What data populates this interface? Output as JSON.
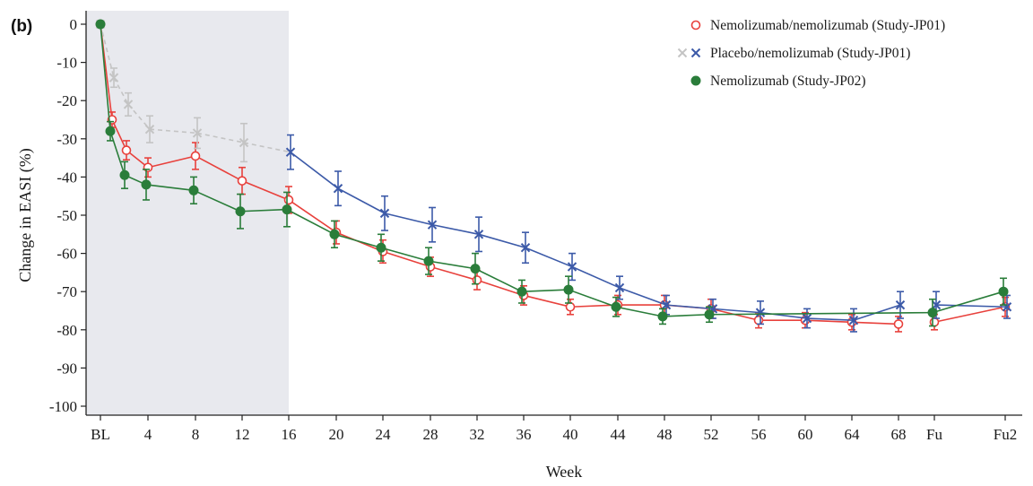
{
  "chart_data": {
    "type": "line",
    "panel_label": "(b)",
    "xlabel": "Week",
    "ylabel": "Change in EASI (%)",
    "ylim": [
      -100,
      0
    ],
    "yticks": [
      0,
      -10,
      -20,
      -30,
      -40,
      -50,
      -60,
      -70,
      -80,
      -90,
      -100
    ],
    "xticks": [
      "BL",
      "4",
      "8",
      "12",
      "16",
      "20",
      "24",
      "28",
      "32",
      "36",
      "40",
      "44",
      "48",
      "52",
      "56",
      "60",
      "64",
      "68",
      "Fu",
      "Fu2"
    ],
    "shaded_period": [
      "BL",
      "16"
    ],
    "legend": {
      "position": "top-right"
    },
    "series": [
      {
        "name": "Nemolizumab/nemolizumab (Study-JP01)",
        "color": "#e8413c",
        "marker": "open-circle",
        "line": "solid",
        "points": [
          {
            "x": "BL",
            "y": 0,
            "err": 0
          },
          {
            "x": "1",
            "y": -25,
            "err": 2
          },
          {
            "x": "2",
            "y": -33,
            "err": 2.5
          },
          {
            "x": "4",
            "y": -37.5,
            "err": 2.5
          },
          {
            "x": "8",
            "y": -34.5,
            "err": 3.5
          },
          {
            "x": "12",
            "y": -41,
            "err": 3.5
          },
          {
            "x": "16",
            "y": -46,
            "err": 3.5
          },
          {
            "x": "20",
            "y": -54.5,
            "err": 3
          },
          {
            "x": "24",
            "y": -59.5,
            "err": 3
          },
          {
            "x": "28",
            "y": -63.5,
            "err": 2.5
          },
          {
            "x": "32",
            "y": -67,
            "err": 2.5
          },
          {
            "x": "36",
            "y": -71,
            "err": 2.5
          },
          {
            "x": "40",
            "y": -74,
            "err": 2
          },
          {
            "x": "44",
            "y": -73.5,
            "err": 2.5
          },
          {
            "x": "48",
            "y": -73.5,
            "err": 2.5
          },
          {
            "x": "52",
            "y": -74.5,
            "err": 2.5
          },
          {
            "x": "56",
            "y": -77.5,
            "err": 2
          },
          {
            "x": "60",
            "y": -77.5,
            "err": 2
          },
          {
            "x": "64",
            "y": -78,
            "err": 2
          },
          {
            "x": "68",
            "y": -78.5,
            "err": 2
          },
          {
            "x": "Fu",
            "y": -78,
            "err": 2
          },
          {
            "x": "Fu2",
            "y": -74,
            "err": 2.5
          }
        ]
      },
      {
        "name": "Placebo/nemolizumab (Study-JP01)",
        "color": "#3c5aa8",
        "color_placebo_period": "#c4c4c4",
        "marker": "x",
        "line": "solid",
        "line_placebo_period": "dashed",
        "points": [
          {
            "x": "BL",
            "y": 0,
            "err": 0
          },
          {
            "x": "1",
            "y": -14,
            "err": 2.5
          },
          {
            "x": "2",
            "y": -21,
            "err": 3
          },
          {
            "x": "4",
            "y": -27.5,
            "err": 3.5
          },
          {
            "x": "8",
            "y": -28.5,
            "err": 4
          },
          {
            "x": "12",
            "y": -31,
            "err": 5
          },
          {
            "x": "16",
            "y": -33.5,
            "err": 4.5
          },
          {
            "x": "20",
            "y": -43,
            "err": 4.5
          },
          {
            "x": "24",
            "y": -49.5,
            "err": 4.5
          },
          {
            "x": "28",
            "y": -52.5,
            "err": 4.5
          },
          {
            "x": "32",
            "y": -55,
            "err": 4.5
          },
          {
            "x": "36",
            "y": -58.5,
            "err": 4
          },
          {
            "x": "40",
            "y": -63.5,
            "err": 3.5
          },
          {
            "x": "44",
            "y": -69,
            "err": 3
          },
          {
            "x": "48",
            "y": -73.5,
            "err": 2.5
          },
          {
            "x": "52",
            "y": -74.5,
            "err": 2.5
          },
          {
            "x": "56",
            "y": -75.5,
            "err": 3
          },
          {
            "x": "60",
            "y": -77,
            "err": 2.5
          },
          {
            "x": "64",
            "y": -77.5,
            "err": 3
          },
          {
            "x": "68",
            "y": -73.5,
            "err": 3.5
          },
          {
            "x": "Fu",
            "y": -73.5,
            "err": 3.5
          },
          {
            "x": "Fu2",
            "y": -74,
            "err": 3
          }
        ]
      },
      {
        "name": "Nemolizumab (Study-JP02)",
        "color": "#2a7d3a",
        "marker": "filled-circle",
        "line": "solid",
        "points": [
          {
            "x": "BL",
            "y": 0,
            "err": 0
          },
          {
            "x": "1",
            "y": -28,
            "err": 2.5
          },
          {
            "x": "2",
            "y": -39.5,
            "err": 3.5
          },
          {
            "x": "4",
            "y": -42,
            "err": 4
          },
          {
            "x": "8",
            "y": -43.5,
            "err": 3.5
          },
          {
            "x": "12",
            "y": -49,
            "err": 4.5
          },
          {
            "x": "16",
            "y": -48.5,
            "err": 4.5
          },
          {
            "x": "20",
            "y": -55,
            "err": 3.5
          },
          {
            "x": "24",
            "y": -58.5,
            "err": 3.5
          },
          {
            "x": "28",
            "y": -62,
            "err": 3.5
          },
          {
            "x": "32",
            "y": -64,
            "err": 4
          },
          {
            "x": "36",
            "y": -70,
            "err": 3
          },
          {
            "x": "40",
            "y": -69.5,
            "err": 3.5
          },
          {
            "x": "44",
            "y": -74,
            "err": 2.5
          },
          {
            "x": "48",
            "y": -76.5,
            "err": 2
          },
          {
            "x": "52",
            "y": -76,
            "err": 2
          },
          {
            "x": "Fu",
            "y": -75.5,
            "err": 3.5
          },
          {
            "x": "Fu2",
            "y": -70,
            "err": 3.5
          }
        ]
      }
    ]
  }
}
